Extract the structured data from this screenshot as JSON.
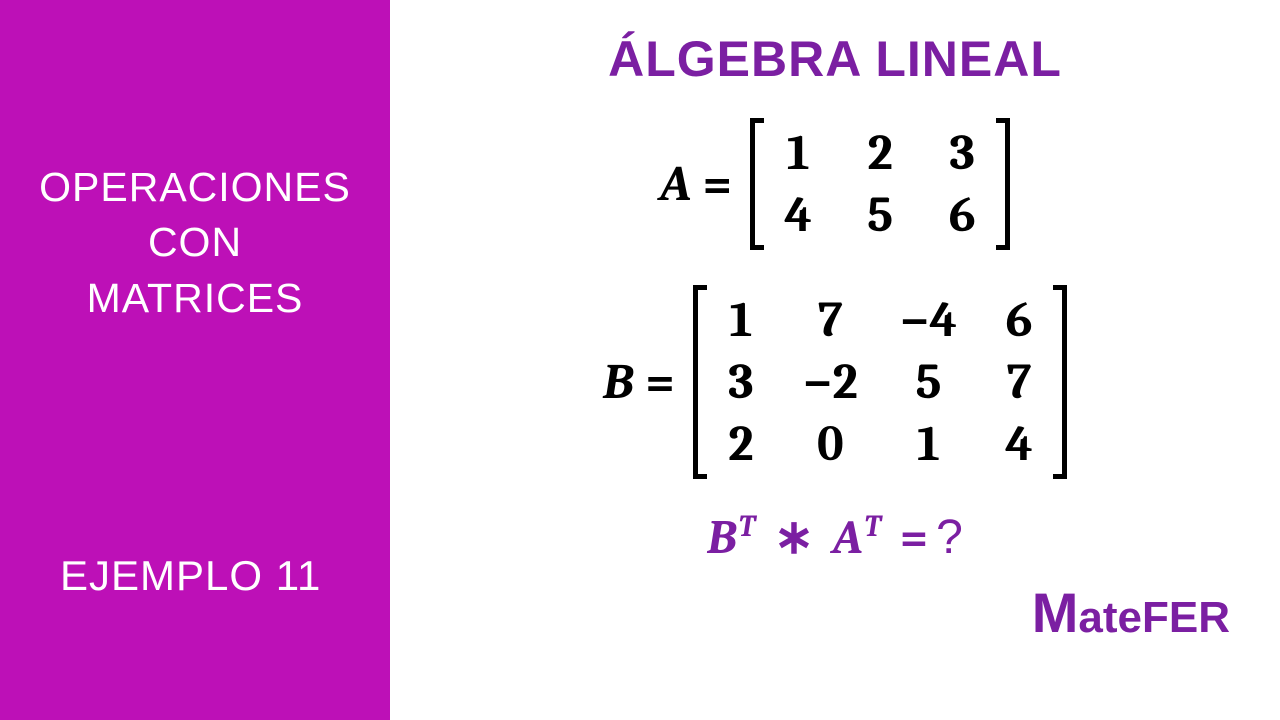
{
  "colors": {
    "sidebar_bg": "#bd10b7",
    "sidebar_text": "#ffffff",
    "main_bg": "#ffffff",
    "title_color": "#7b1fa2",
    "math_color": "#000000",
    "equation_color": "#7b1fa2",
    "brand_color": "#7b1fa2"
  },
  "sidebar": {
    "title_line1": "OPERACIONES",
    "title_line2": "CON",
    "title_line3": "MATRICES",
    "example_label": "EJEMPLO 11"
  },
  "main": {
    "title": "ÁLGEBRA LINEAL"
  },
  "matrix_a": {
    "label": "A",
    "rows": 2,
    "cols": 3,
    "values": [
      [
        "1",
        "2",
        "3"
      ],
      [
        "4",
        "5",
        "6"
      ]
    ]
  },
  "matrix_b": {
    "label": "B",
    "rows": 3,
    "cols": 4,
    "values": [
      [
        "1",
        "7",
        "−4",
        "6"
      ],
      [
        "3",
        "−2",
        "5",
        "7"
      ],
      [
        "2",
        "0",
        "1",
        "4"
      ]
    ]
  },
  "equation": {
    "lhs_var1": "B",
    "lhs_sup1": "T",
    "op": "∗",
    "lhs_var2": "A",
    "lhs_sup2": "T",
    "eq": "=",
    "rhs": "?"
  },
  "brand": {
    "first": "M",
    "rest": "ateFER"
  }
}
